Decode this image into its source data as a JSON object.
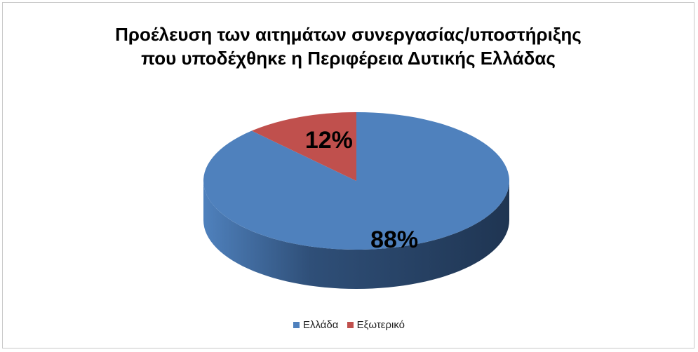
{
  "chart_data": {
    "type": "pie",
    "style": "3d",
    "title_lines": [
      "Προέλευση των αιτημάτων συνεργασίας/υποστήριξης",
      "που υποδέχθηκε η Περιφέρεια Δυτικής Ελλάδας"
    ],
    "slices": [
      {
        "label": "Ελλάδα",
        "value": 88,
        "display": "88%",
        "color": "#4f81bd",
        "side_color": "#2f4f78"
      },
      {
        "label": "Εξωτερικό",
        "value": 12,
        "display": "12%",
        "color": "#c0504d",
        "side_color": "#7a2f2d"
      }
    ],
    "legend_position": "bottom"
  }
}
